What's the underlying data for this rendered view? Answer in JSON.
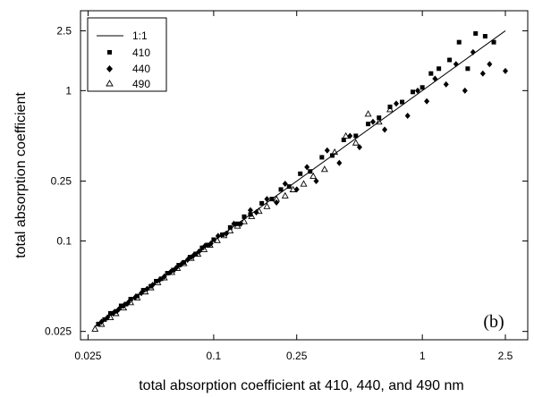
{
  "chart_data": {
    "type": "scatter",
    "title": "",
    "xlabel": "total absorption coefficient at 410, 440, and 490 nm",
    "ylabel": "total absorption coefficient",
    "xscale": "log",
    "yscale": "log",
    "xlim": [
      0.023,
      3.2
    ],
    "ylim": [
      0.022,
      3.4
    ],
    "xticks": [
      0.025,
      0.1,
      0.25,
      1,
      2.5
    ],
    "xtick_labels": [
      "0.025",
      "0.1",
      "0.25",
      "1",
      "2.5"
    ],
    "yticks": [
      0.025,
      0.1,
      0.25,
      1,
      2.5
    ],
    "ytick_labels": [
      "0.025",
      "0.1",
      "0.25",
      "1",
      "2.5"
    ],
    "grid": false,
    "legend_position": "top-left",
    "panel_label": "(b)",
    "line": {
      "name": "1:1",
      "x": [
        0.027,
        2.5
      ],
      "y": [
        0.027,
        2.5
      ]
    },
    "series": [
      {
        "name": "410",
        "marker": "square",
        "x": [
          0.028,
          0.03,
          0.032,
          0.034,
          0.036,
          0.038,
          0.04,
          0.043,
          0.046,
          0.05,
          0.053,
          0.056,
          0.06,
          0.064,
          0.068,
          0.072,
          0.077,
          0.082,
          0.088,
          0.094,
          0.1,
          0.11,
          0.12,
          0.13,
          0.14,
          0.15,
          0.17,
          0.19,
          0.21,
          0.23,
          0.26,
          0.29,
          0.33,
          0.37,
          0.42,
          0.48,
          0.55,
          0.62,
          0.7,
          0.8,
          0.9,
          1.0,
          1.1,
          1.2,
          1.35,
          1.5,
          1.65,
          1.8,
          2.0,
          2.2
        ],
        "y": [
          0.028,
          0.03,
          0.033,
          0.034,
          0.037,
          0.038,
          0.041,
          0.043,
          0.047,
          0.05,
          0.054,
          0.056,
          0.061,
          0.064,
          0.069,
          0.072,
          0.078,
          0.082,
          0.09,
          0.094,
          0.102,
          0.11,
          0.123,
          0.13,
          0.145,
          0.15,
          0.178,
          0.19,
          0.22,
          0.23,
          0.28,
          0.29,
          0.36,
          0.37,
          0.47,
          0.5,
          0.6,
          0.66,
          0.78,
          0.84,
          0.98,
          1.05,
          1.3,
          1.4,
          1.6,
          2.1,
          1.4,
          2.4,
          2.3,
          2.1
        ]
      },
      {
        "name": "440",
        "marker": "diamond",
        "x": [
          0.029,
          0.031,
          0.033,
          0.035,
          0.037,
          0.039,
          0.042,
          0.045,
          0.048,
          0.051,
          0.055,
          0.058,
          0.062,
          0.066,
          0.07,
          0.075,
          0.08,
          0.085,
          0.091,
          0.097,
          0.105,
          0.115,
          0.125,
          0.135,
          0.15,
          0.16,
          0.18,
          0.2,
          0.22,
          0.25,
          0.28,
          0.31,
          0.35,
          0.4,
          0.45,
          0.5,
          0.58,
          0.66,
          0.75,
          0.85,
          0.95,
          1.05,
          1.15,
          1.3,
          1.45,
          1.6,
          1.75,
          1.95,
          2.1,
          2.5
        ],
        "y": [
          0.029,
          0.031,
          0.033,
          0.035,
          0.037,
          0.039,
          0.042,
          0.045,
          0.048,
          0.051,
          0.055,
          0.058,
          0.062,
          0.066,
          0.07,
          0.075,
          0.08,
          0.085,
          0.093,
          0.096,
          0.108,
          0.112,
          0.13,
          0.13,
          0.16,
          0.155,
          0.19,
          0.18,
          0.24,
          0.22,
          0.31,
          0.25,
          0.4,
          0.33,
          0.5,
          0.42,
          0.62,
          0.55,
          0.82,
          0.68,
          1.0,
          0.85,
          1.2,
          1.1,
          1.5,
          1.0,
          1.8,
          1.3,
          1.5,
          1.35
        ]
      },
      {
        "name": "490",
        "marker": "triangle",
        "x": [
          0.027,
          0.029,
          0.032,
          0.034,
          0.037,
          0.04,
          0.043,
          0.047,
          0.05,
          0.054,
          0.058,
          0.063,
          0.067,
          0.072,
          0.078,
          0.084,
          0.09,
          0.096,
          0.104,
          0.112,
          0.12,
          0.13,
          0.14,
          0.152,
          0.165,
          0.18,
          0.2,
          0.22,
          0.24,
          0.27,
          0.3,
          0.34,
          0.38,
          0.43,
          0.48,
          0.55,
          0.62,
          0.7
        ],
        "y": [
          0.026,
          0.028,
          0.031,
          0.033,
          0.036,
          0.039,
          0.042,
          0.046,
          0.049,
          0.053,
          0.057,
          0.062,
          0.066,
          0.071,
          0.077,
          0.082,
          0.088,
          0.094,
          0.101,
          0.109,
          0.117,
          0.126,
          0.135,
          0.146,
          0.158,
          0.17,
          0.19,
          0.2,
          0.22,
          0.24,
          0.27,
          0.3,
          0.39,
          0.5,
          0.45,
          0.7,
          0.62,
          0.75
        ]
      }
    ]
  }
}
